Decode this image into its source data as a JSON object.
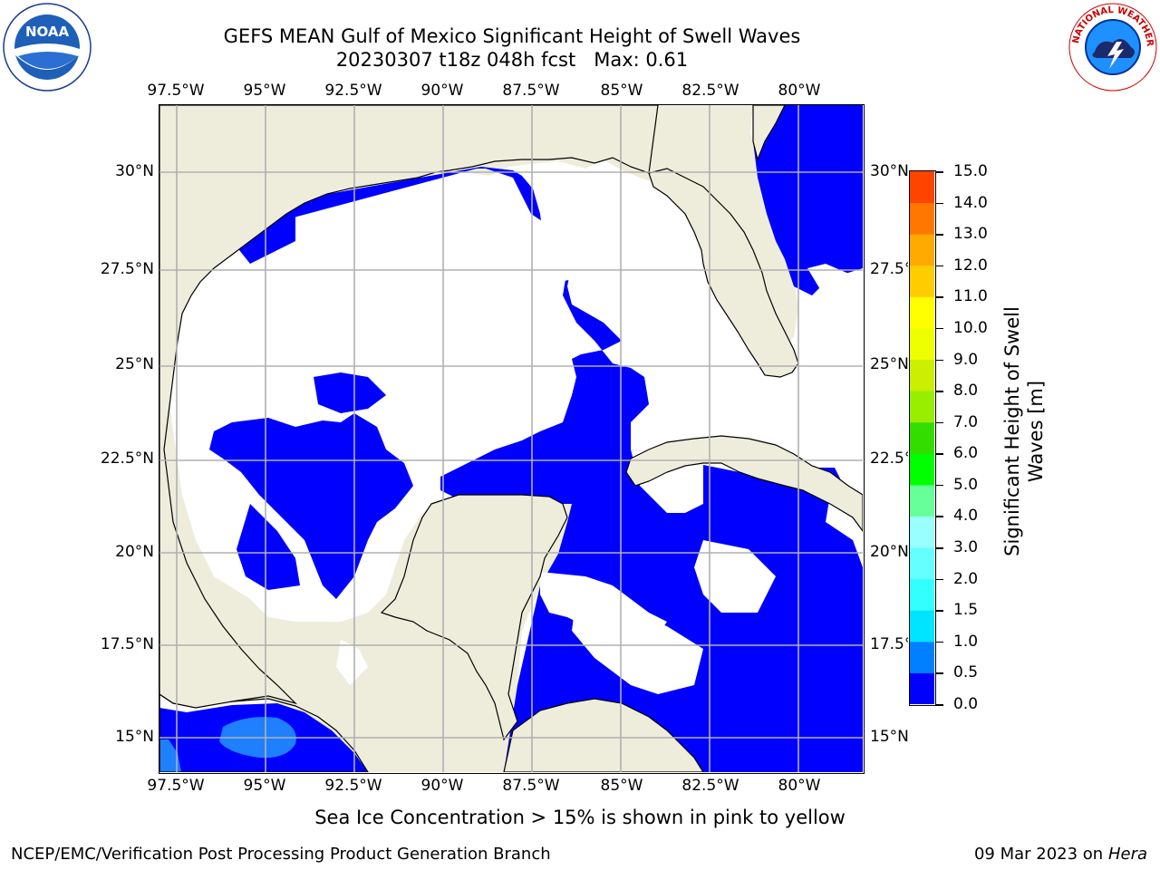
{
  "title": {
    "line1": "GEFS MEAN Gulf of Mexico Significant Height of Swell Waves",
    "line2": "20230307 t18z 048h fcst   Max: 0.61"
  },
  "axes": {
    "lon_labels": [
      "97.5°W",
      "95°W",
      "92.5°W",
      "90°W",
      "87.5°W",
      "85°W",
      "82.5°W",
      "80°W"
    ],
    "lat_labels": [
      "30°N",
      "27.5°N",
      "25°N",
      "22.5°N",
      "20°N",
      "17.5°N",
      "15°N"
    ],
    "lon_range": [
      -98,
      -78
    ],
    "lat_range": [
      14,
      32
    ]
  },
  "colorbar": {
    "label": "Significant Height of Swell Waves [m]",
    "levels": [
      "0.0",
      "0.5",
      "1.0",
      "1.5",
      "2.0",
      "3.0",
      "4.0",
      "5.0",
      "6.0",
      "7.0",
      "8.0",
      "9.0",
      "10.0",
      "11.0",
      "12.0",
      "13.0",
      "14.0",
      "15.0"
    ],
    "colors": [
      "#0000ff",
      "#0080ff",
      "#00e5ff",
      "#33ffff",
      "#66ffff",
      "#99ffff",
      "#66ff99",
      "#00ff00",
      "#33dd00",
      "#99ee00",
      "#ccee00",
      "#eeff00",
      "#ffff00",
      "#ffcc00",
      "#ffaa00",
      "#ff7700",
      "#ff4400",
      "#ff0000"
    ]
  },
  "note": "Sea Ice Concentration > 15% is shown in pink to yellow",
  "footer": {
    "left": "NCEP/EMC/Verification Post Processing Product Generation Branch",
    "right_date": "09 Mar 2023 on",
    "right_host": "Hera"
  },
  "logos": {
    "noaa": "NOAA",
    "nws": "NATIONAL WEATHER SERVICE"
  },
  "map_colors": {
    "land": "#eeeddc",
    "ocean_low": "#0000ff",
    "ocean_mid": "#1e7fff",
    "ocean_none": "#ffffff",
    "grid": "#b0b0b0"
  }
}
